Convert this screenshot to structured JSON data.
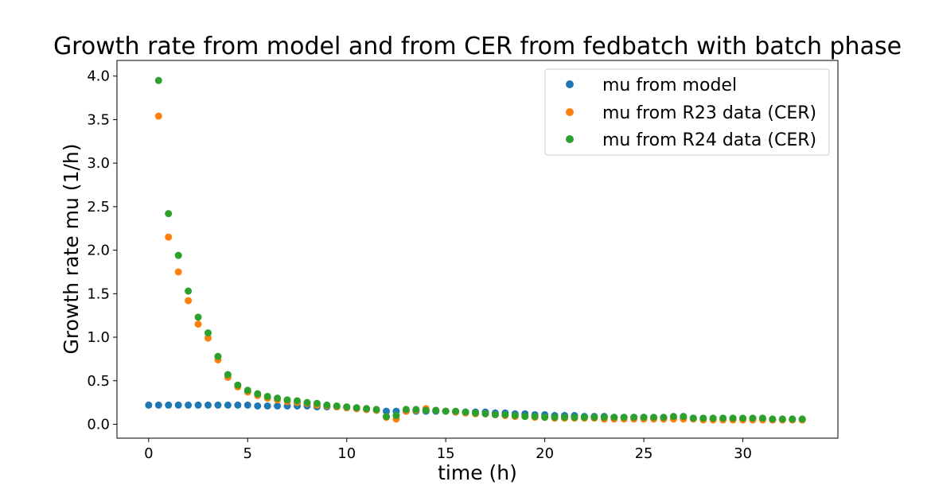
{
  "chart_data": {
    "type": "scatter",
    "title": "Growth rate from model and from CER from fedbatch with batch phase",
    "xlabel": "time (h)",
    "ylabel": "Growth rate mu (1/h)",
    "xlim": [
      -1.6,
      34.8
    ],
    "ylim": [
      -0.16,
      4.18
    ],
    "x_ticks": [
      0,
      5,
      10,
      15,
      20,
      25,
      30
    ],
    "y_ticks": [
      0.0,
      0.5,
      1.0,
      1.5,
      2.0,
      2.5,
      3.0,
      3.5,
      4.0
    ],
    "x_tick_labels": [
      "0",
      "5",
      "10",
      "15",
      "20",
      "25",
      "30"
    ],
    "y_tick_labels": [
      "0.0",
      "0.5",
      "1.0",
      "1.5",
      "2.0",
      "2.5",
      "3.0",
      "3.5",
      "4.0"
    ],
    "grid": false,
    "legend_position": "top-right",
    "series": [
      {
        "name": "mu from model",
        "color": "#1f77b4",
        "x": [
          0,
          0.5,
          1,
          1.5,
          2,
          2.5,
          3,
          3.5,
          4,
          4.5,
          5,
          5.5,
          6,
          6.5,
          7,
          7.5,
          8,
          8.5,
          9,
          9.5,
          10,
          10.5,
          11,
          11.5,
          12,
          12.5,
          13,
          13.5,
          14,
          14.5,
          15,
          15.5,
          16,
          16.5,
          17,
          17.5,
          18,
          18.5,
          19,
          19.5,
          20,
          20.5,
          21,
          21.5,
          22,
          22.5,
          23,
          23.5,
          24,
          24.5,
          25,
          25.5,
          26,
          26.5,
          27,
          27.5,
          28,
          28.5,
          29,
          29.5,
          30,
          30.5,
          31,
          31.5,
          32,
          32.5,
          33
        ],
        "y": [
          0.22,
          0.22,
          0.22,
          0.22,
          0.22,
          0.22,
          0.22,
          0.22,
          0.22,
          0.22,
          0.22,
          0.21,
          0.21,
          0.21,
          0.21,
          0.21,
          0.21,
          0.2,
          0.2,
          0.2,
          0.19,
          0.18,
          0.17,
          0.16,
          0.15,
          0.15,
          0.15,
          0.15,
          0.15,
          0.15,
          0.15,
          0.14,
          0.14,
          0.14,
          0.14,
          0.13,
          0.13,
          0.12,
          0.12,
          0.11,
          0.11,
          0.1,
          0.1,
          0.1,
          0.09,
          0.09,
          0.09,
          0.08,
          0.08,
          0.08,
          0.08,
          0.07,
          0.07,
          0.07,
          0.07,
          0.07,
          0.06,
          0.06,
          0.06,
          0.06,
          0.06,
          0.06,
          0.06,
          0.05,
          0.05,
          0.05,
          0.05
        ]
      },
      {
        "name": "mu from R23 data (CER)",
        "color": "#ff7f0e",
        "x": [
          0.5,
          1,
          1.5,
          2,
          2.5,
          3,
          3.5,
          4,
          4.5,
          5,
          5.5,
          6,
          6.5,
          7,
          7.5,
          8,
          8.5,
          9,
          9.5,
          10,
          10.5,
          11,
          11.5,
          12,
          12.5,
          13,
          13.5,
          14,
          14.5,
          15,
          15.5,
          16,
          16.5,
          17,
          17.5,
          18,
          18.5,
          19,
          19.5,
          20,
          20.5,
          21,
          21.5,
          22,
          22.5,
          23,
          23.5,
          24,
          24.5,
          25,
          25.5,
          26,
          26.5,
          27,
          27.5,
          28,
          28.5,
          29,
          29.5,
          30,
          30.5,
          31,
          31.5,
          32,
          32.5,
          33
        ],
        "y": [
          3.54,
          2.15,
          1.75,
          1.42,
          1.15,
          0.99,
          0.74,
          0.54,
          0.43,
          0.37,
          0.33,
          0.3,
          0.28,
          0.26,
          0.25,
          0.24,
          0.22,
          0.21,
          0.2,
          0.19,
          0.18,
          0.17,
          0.16,
          0.08,
          0.06,
          0.15,
          0.16,
          0.18,
          0.16,
          0.15,
          0.14,
          0.13,
          0.12,
          0.12,
          0.11,
          0.1,
          0.09,
          0.09,
          0.08,
          0.08,
          0.07,
          0.07,
          0.07,
          0.07,
          0.07,
          0.06,
          0.06,
          0.06,
          0.06,
          0.06,
          0.06,
          0.06,
          0.06,
          0.06,
          0.06,
          0.05,
          0.05,
          0.05,
          0.05,
          0.05,
          0.05,
          0.05,
          0.05,
          0.05,
          0.05,
          0.05
        ]
      },
      {
        "name": "mu from R24 data (CER)",
        "color": "#2ca02c",
        "x": [
          0.5,
          1,
          1.5,
          2,
          2.5,
          3,
          3.5,
          4,
          4.5,
          5,
          5.5,
          6,
          6.5,
          7,
          7.5,
          8,
          8.5,
          9,
          9.5,
          10,
          10.5,
          11,
          11.5,
          12,
          12.5,
          13,
          13.5,
          14,
          14.5,
          15,
          15.5,
          16,
          16.5,
          17,
          17.5,
          18,
          18.5,
          19,
          19.5,
          20,
          20.5,
          21,
          21.5,
          22,
          22.5,
          23,
          23.5,
          24,
          24.5,
          25,
          25.5,
          26,
          26.5,
          27,
          27.5,
          28,
          28.5,
          29,
          29.5,
          30,
          30.5,
          31,
          31.5,
          32,
          32.5,
          33
        ],
        "y": [
          3.95,
          2.42,
          1.94,
          1.53,
          1.23,
          1.05,
          0.78,
          0.57,
          0.45,
          0.39,
          0.35,
          0.32,
          0.3,
          0.28,
          0.27,
          0.25,
          0.24,
          0.22,
          0.21,
          0.2,
          0.19,
          0.18,
          0.17,
          0.09,
          0.1,
          0.17,
          0.17,
          0.16,
          0.16,
          0.15,
          0.15,
          0.14,
          0.13,
          0.12,
          0.11,
          0.11,
          0.1,
          0.09,
          0.09,
          0.08,
          0.08,
          0.08,
          0.08,
          0.08,
          0.08,
          0.08,
          0.08,
          0.08,
          0.08,
          0.08,
          0.08,
          0.08,
          0.09,
          0.09,
          0.07,
          0.07,
          0.07,
          0.07,
          0.07,
          0.07,
          0.07,
          0.07,
          0.06,
          0.06,
          0.06,
          0.06
        ]
      }
    ]
  }
}
